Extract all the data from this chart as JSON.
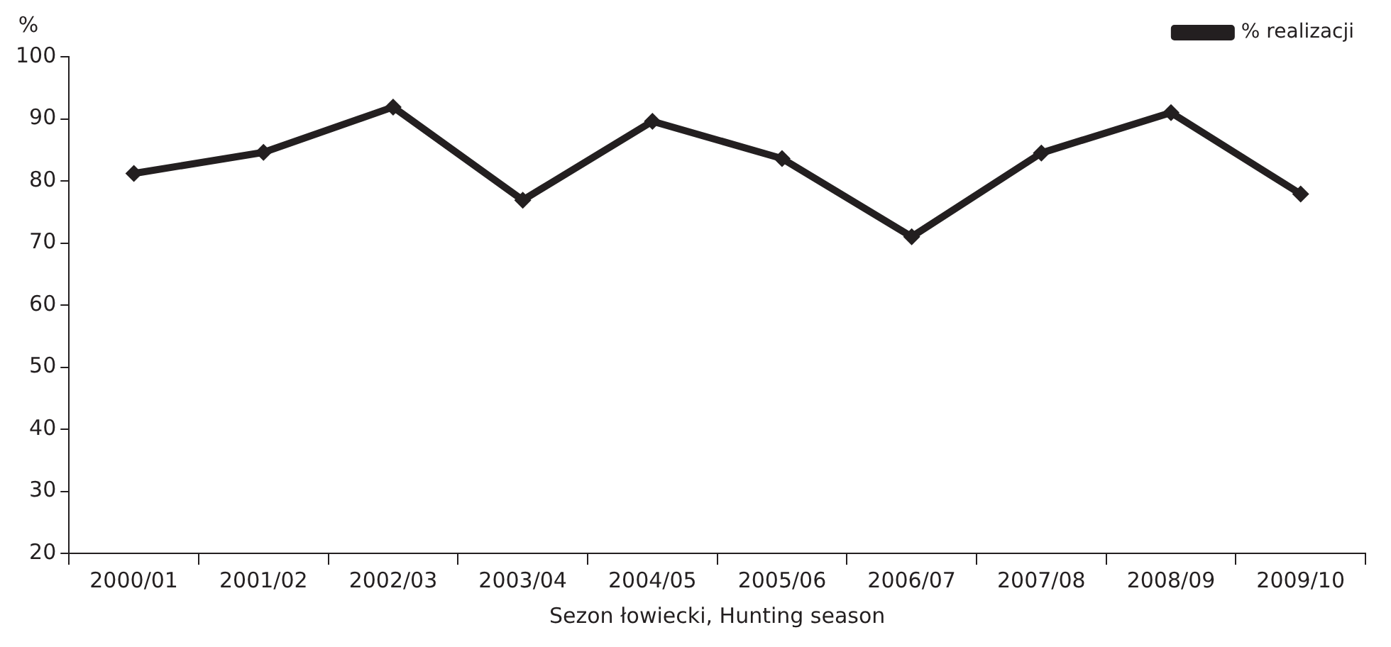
{
  "chart_data": {
    "type": "line",
    "ylabel": "%",
    "xlabel": "Sezon łowiecki, Hunting season",
    "categories": [
      "2000/01",
      "2001/02",
      "2002/03",
      "2003/04",
      "2004/05",
      "2005/06",
      "2006/07",
      "2007/08",
      "2008/09",
      "2009/10"
    ],
    "series": [
      {
        "name": "% realizacji",
        "color": "#231f20",
        "values": [
          81.2,
          84.6,
          91.9,
          76.9,
          89.6,
          83.6,
          71.0,
          84.5,
          91.0,
          77.9
        ]
      }
    ],
    "ylim": [
      20,
      100
    ],
    "yticks": [
      20,
      30,
      40,
      50,
      60,
      70,
      80,
      90,
      100
    ],
    "grid": false,
    "legend": "top right",
    "marker": "diamond",
    "line_style": "solid"
  }
}
